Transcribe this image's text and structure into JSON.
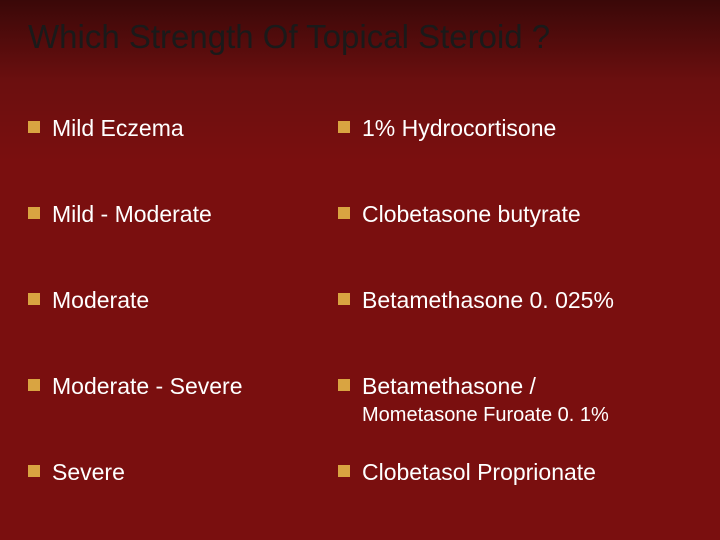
{
  "title": "Which Strength Of Topical Steroid ?",
  "left": [
    "Mild Eczema",
    "Mild - Moderate",
    "Moderate",
    "Moderate - Severe",
    "Severe"
  ],
  "right": [
    {
      "main": "1% Hydrocortisone",
      "sub": ""
    },
    {
      "main": "Clobetasone butyrate",
      "sub": ""
    },
    {
      "main": "Betamethasone 0. 025%",
      "sub": ""
    },
    {
      "main": "Betamethasone /",
      "sub": "Mometasone Furoate 0. 1%"
    },
    {
      "main": "Clobetasol Proprionate",
      "sub": ""
    }
  ],
  "colors": {
    "bullet": "#d9a441",
    "text": "#ffffff",
    "title": "#1a1a1a",
    "bg_top": "#3a0808",
    "bg_bottom": "#7a0f0f"
  },
  "fonts": {
    "title_size": 33,
    "body_size": 23,
    "sub_size": 20
  }
}
